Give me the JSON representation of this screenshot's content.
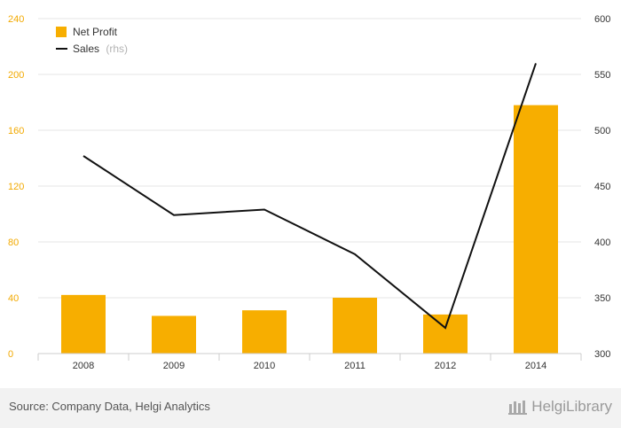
{
  "chart_data": {
    "type": "bar",
    "categories": [
      "2008",
      "2009",
      "2010",
      "2011",
      "2012",
      "2014"
    ],
    "series": [
      {
        "name": "Net Profit",
        "type": "bar",
        "axis": "left",
        "color": "#f7ae00",
        "values": [
          42,
          27,
          31,
          40,
          28,
          178
        ]
      },
      {
        "name": "Sales",
        "name_suffix": "(rhs)",
        "type": "line",
        "axis": "right",
        "color": "#111111",
        "values": [
          477,
          424,
          429,
          389,
          323,
          560
        ]
      }
    ],
    "y_left": {
      "min": 0,
      "max": 240,
      "ticks": [
        "0",
        "40",
        "80",
        "120",
        "160",
        "200",
        "240"
      ]
    },
    "y_right": {
      "min": 300,
      "max": 600,
      "ticks": [
        "300",
        "350",
        "400",
        "450",
        "500",
        "550",
        "600"
      ]
    },
    "grid": true,
    "legend_position": "top-left"
  },
  "footer": {
    "source": "Source: Company Data, Helgi Analytics",
    "brand": "HelgiLibrary"
  },
  "colors": {
    "left_axis": "#f2a900",
    "footer_bg": "#f2f2f2"
  }
}
